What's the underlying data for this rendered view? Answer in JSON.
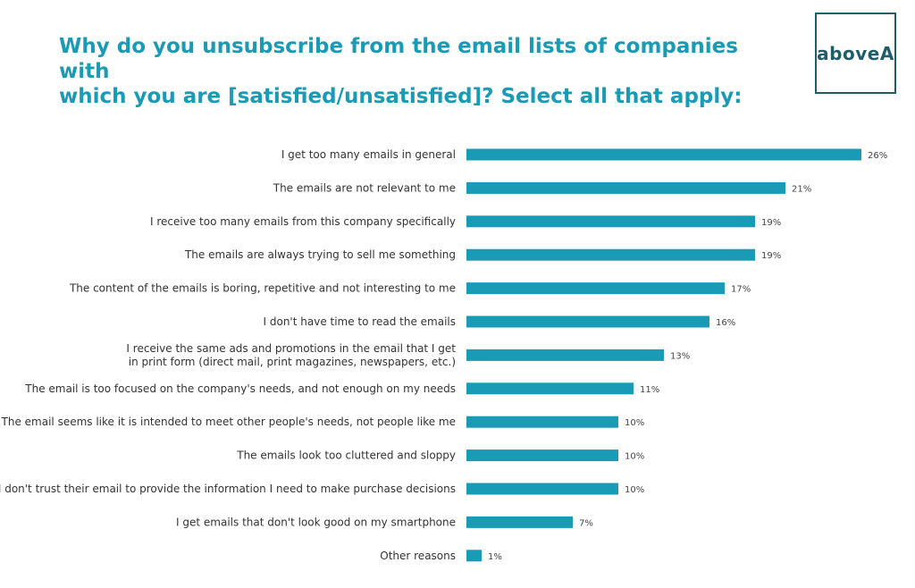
{
  "title": {
    "line1": "Why do you unsubscribe from the email lists of companies with",
    "line2": "which you are [satisfied/unsatisfied]? Select all that apply:"
  },
  "logo": {
    "text": "aboveA"
  },
  "colors": {
    "bar": "#1a9bb5",
    "title": "#1a9bb5",
    "logo": "#1f5d6b"
  },
  "chart_data": {
    "type": "bar",
    "orientation": "horizontal",
    "title": "Why do you unsubscribe from the email lists of companies with which you are [satisfied/unsatisfied]? Select all that apply:",
    "xlabel": "",
    "ylabel": "",
    "xlim": [
      0,
      26
    ],
    "grid": false,
    "categories": [
      [
        "I get too many emails in general"
      ],
      [
        "The emails are not relevant to me"
      ],
      [
        "I receive too many emails from this company specifically"
      ],
      [
        "The emails are always trying to sell me something"
      ],
      [
        "The content of the emails is boring, repetitive and not interesting to me"
      ],
      [
        "I don't have time to read the emails"
      ],
      [
        "I receive the same ads and promotions in the email that I get",
        "in print form (direct mail, print magazines, newspapers, etc.)"
      ],
      [
        "The email is too focused on the company's needs, and not enough on my needs"
      ],
      [
        "The email seems like it is intended to meet other people's needs, not people like me"
      ],
      [
        "The emails look too cluttered and sloppy"
      ],
      [
        "I don't trust their email to provide the information I need to make purchase decisions"
      ],
      [
        "I get emails that don't look good on my smartphone"
      ],
      [
        "Other reasons"
      ]
    ],
    "values": [
      26,
      21,
      19,
      19,
      17,
      16,
      13,
      11,
      10,
      10,
      10,
      7,
      1
    ],
    "value_labels": [
      "26%",
      "21%",
      "19%",
      "19%",
      "17%",
      "16%",
      "13%",
      "11%",
      "10%",
      "10%",
      "10%",
      "7%",
      "1%"
    ]
  }
}
